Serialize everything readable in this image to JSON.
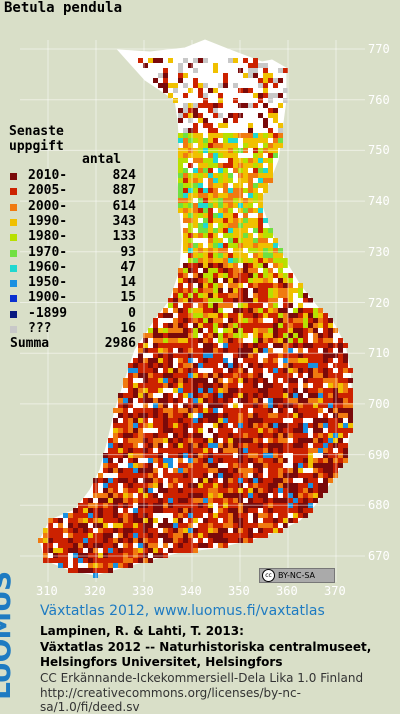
{
  "title": "Betula pendula",
  "legend": {
    "heading1": "Senaste",
    "heading2": "uppgift",
    "count_header": "antal",
    "items": [
      {
        "label": "2010-",
        "count": "824",
        "color": "#7a0a0a"
      },
      {
        "label": "2005-",
        "count": "887",
        "color": "#cc2200"
      },
      {
        "label": "2000-",
        "count": "614",
        "color": "#f07a10"
      },
      {
        "label": "1990-",
        "count": "343",
        "color": "#f0c000"
      },
      {
        "label": "1980-",
        "count": "133",
        "color": "#b8e000"
      },
      {
        "label": "1970-",
        "count": "93",
        "color": "#70e040"
      },
      {
        "label": "1960-",
        "count": "47",
        "color": "#20d8d0"
      },
      {
        "label": "1950-",
        "count": "14",
        "color": "#1a90e0"
      },
      {
        "label": "1900-",
        "count": "15",
        "color": "#0a30d0"
      },
      {
        "label": "-1899",
        "count": "0",
        "color": "#081880"
      },
      {
        "label": "???",
        "count": "16",
        "color": "#c8c8c8"
      }
    ],
    "total_label": "Summa",
    "total": "2986"
  },
  "map": {
    "y_ticks": [
      "770",
      "760",
      "750",
      "740",
      "730",
      "720",
      "710",
      "700",
      "690",
      "680",
      "670"
    ],
    "x_ticks": [
      "310",
      "320",
      "330",
      "340",
      "350",
      "360",
      "370"
    ],
    "license_badge": "BY-NC-SA"
  },
  "footer": {
    "logo": "LUOMUS",
    "line1": "Växtatlas 2012, www.luomus.fi/vaxtatlas",
    "line2": "Lampinen, R. & Lahti, T. 2013:",
    "line3": "Växtatlas 2012 -- Naturhistoriska centralmuseet,",
    "line4": "Helsingfors Universitet, Helsingfors",
    "line5": "CC Erkännande-Ickekommersiell-Dela Lika 1.0 Finland",
    "line6": "http://creativecommons.org/licenses/by-nc-sa/1.0/fi/deed.sv"
  }
}
